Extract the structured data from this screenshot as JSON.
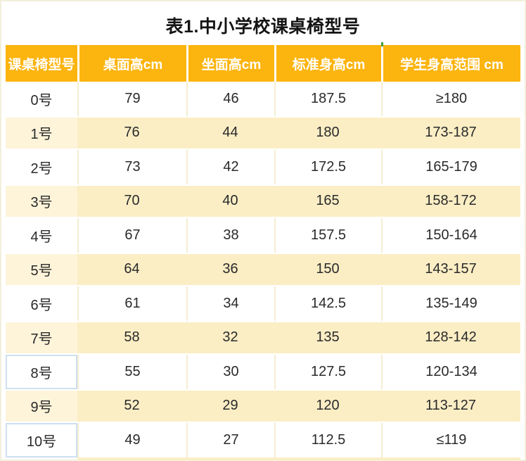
{
  "page": {
    "title": "表1.中小学校课桌椅型号"
  },
  "table": {
    "columns": [
      {
        "label": "课桌椅型号"
      },
      {
        "label": "桌面高cm"
      },
      {
        "label": "坐面高cm"
      },
      {
        "label": "标准身高cm"
      },
      {
        "label": "学生身高范围 cm"
      }
    ],
    "rows": [
      [
        "0号",
        "79",
        "46",
        "187.5",
        "≥180"
      ],
      [
        "1号",
        "76",
        "44",
        "180",
        "173-187"
      ],
      [
        "2号",
        "73",
        "42",
        "172.5",
        "165-179"
      ],
      [
        "3号",
        "70",
        "40",
        "165",
        "158-172"
      ],
      [
        "4号",
        "67",
        "38",
        "157.5",
        "150-164"
      ],
      [
        "5号",
        "64",
        "36",
        "150",
        "143-157"
      ],
      [
        "6号",
        "61",
        "34",
        "142.5",
        "135-149"
      ],
      [
        "7号",
        "58",
        "32",
        "135",
        "128-142"
      ],
      [
        "8号",
        "55",
        "30",
        "127.5",
        "120-134"
      ],
      [
        "9号",
        "52",
        "29",
        "120",
        "113-127"
      ],
      [
        "10号",
        "49",
        "27",
        "112.5",
        "≤119"
      ]
    ],
    "highlighted_first_col_rows": [
      8,
      10
    ],
    "zebra_start": "white"
  },
  "colors": {
    "header_bg": "#fcb40e",
    "header_text": "#ffffff",
    "row_yellow": "#fbeec5",
    "row_yellow_first_col": "#fdf4da",
    "body_text": "#2a2a2a",
    "title_text": "#141414",
    "separator_cream": "#f5edd0",
    "highlight_border_blue": "#cfe0f0",
    "outer_border": "#f2f0dc",
    "artifact_green": "#3f9b35"
  },
  "chart_data": {
    "type": "table",
    "title": "表1.中小学校课桌椅型号",
    "columns": [
      "课桌椅型号",
      "桌面高cm",
      "坐面高cm",
      "标准身高cm",
      "学生身高范围 cm"
    ],
    "rows": [
      [
        "0号",
        79,
        46,
        187.5,
        "≥180"
      ],
      [
        "1号",
        76,
        44,
        180,
        "173-187"
      ],
      [
        "2号",
        73,
        42,
        172.5,
        "165-179"
      ],
      [
        "3号",
        70,
        40,
        165,
        "158-172"
      ],
      [
        "4号",
        67,
        38,
        157.5,
        "150-164"
      ],
      [
        "5号",
        64,
        36,
        150,
        "143-157"
      ],
      [
        "6号",
        61,
        34,
        142.5,
        "135-149"
      ],
      [
        "7号",
        58,
        32,
        135,
        "128-142"
      ],
      [
        "8号",
        55,
        30,
        127.5,
        "120-134"
      ],
      [
        "9号",
        52,
        29,
        120,
        "113-127"
      ],
      [
        "10号",
        49,
        27,
        112.5,
        "≤119"
      ]
    ]
  }
}
